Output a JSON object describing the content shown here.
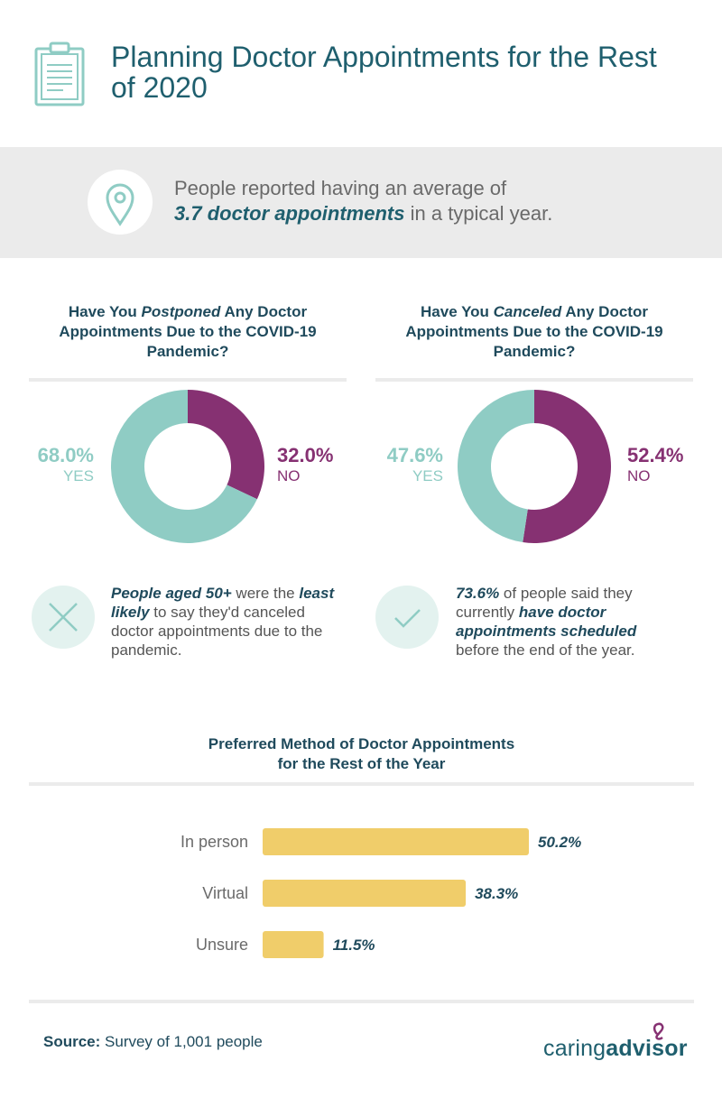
{
  "title": "Planning Doctor Appointments for the Rest of 2020",
  "banner": {
    "prefix": "People reported having an average of",
    "highlight": "3.7 doctor appointments",
    "suffix": "in a typical year."
  },
  "postponed": {
    "title_pre": "Have You ",
    "title_em": "Postponed",
    "title_post": " Any Doctor Appointments Due to the COVID-19 Pandemic?",
    "yes_pct": "68.0%",
    "yes_label": "YES",
    "no_pct": "32.0%",
    "no_label": "NO"
  },
  "canceled": {
    "title_pre": "Have You ",
    "title_em": "Canceled",
    "title_post": " Any Doctor Appointments Due to the COVID-19 Pandemic?",
    "yes_pct": "47.6%",
    "yes_label": "YES",
    "no_pct": "52.4%",
    "no_label": "NO"
  },
  "note1": {
    "b1": "People aged 50+",
    "t1": " were the ",
    "b2": "least likely",
    "t2": " to say they'd canceled doctor appointments due to the pandemic."
  },
  "note2": {
    "b1": "73.6%",
    "t1": " of people said they currently ",
    "b2": "have doctor appointments scheduled",
    "t2": " before the end of the year."
  },
  "bar_title_line1": "Preferred Method of Doctor Appointments",
  "bar_title_line2": "for the Rest of the Year",
  "source_label": "Source:",
  "source_text": " Survey of 1,001 people",
  "logo": {
    "part1": "caring",
    "part2": "advisor"
  },
  "colors": {
    "teal": "#8fccc4",
    "purple": "#863172",
    "yellow": "#f0cd6a",
    "navy": "#1f4a5c"
  },
  "chart_data": [
    {
      "type": "pie",
      "title": "Have You Postponed Any Doctor Appointments Due to the COVID-19 Pandemic?",
      "categories": [
        "NO",
        "YES"
      ],
      "values": [
        32.0,
        68.0
      ]
    },
    {
      "type": "pie",
      "title": "Have You Canceled Any Doctor Appointments Due to the COVID-19 Pandemic?",
      "categories": [
        "NO",
        "YES"
      ],
      "values": [
        52.4,
        47.6
      ]
    },
    {
      "type": "bar",
      "orientation": "horizontal",
      "title": "Preferred Method of Doctor Appointments for the Rest of the Year",
      "categories": [
        "In person",
        "Virtual",
        "Unsure"
      ],
      "values": [
        50.2,
        38.3,
        11.5
      ],
      "value_labels": [
        "50.2%",
        "38.3%",
        "11.5%"
      ],
      "xlim": [
        0,
        60
      ]
    }
  ]
}
